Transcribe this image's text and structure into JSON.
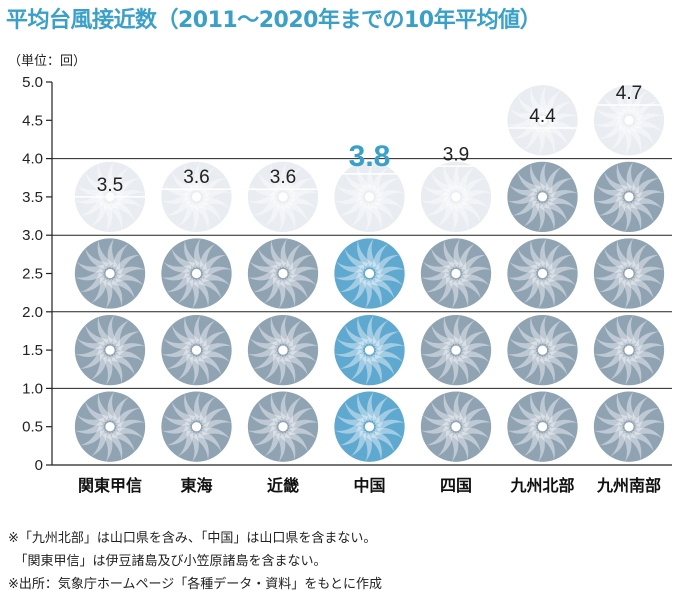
{
  "title": "平均台風接近数（2011～2020年までの10年平均値）",
  "unit_label": "（単位：回）",
  "notes": [
    "※「九州北部」は山口県を含み、「中国」は山口県を含まない。",
    "　「関東甲信」は伊豆諸島及び小笠原諸島を含まない。",
    "※出所：気象庁ホームページ「各種データ・資料」をもとに作成"
  ],
  "colors": {
    "accent": "#3aa0c8",
    "highlight_typhoon": "#5fa8cf",
    "typhoon": "#8fa3b3",
    "faded_typhoon": "#e9edf1",
    "gridline": "#222222"
  },
  "chart_data": {
    "type": "bar",
    "style": "pictogram (typhoon icons, one icon = 1.0 回)",
    "categories": [
      "関東甲信",
      "東海",
      "近畿",
      "中国",
      "四国",
      "九州北部",
      "九州南部"
    ],
    "values": [
      3.5,
      3.6,
      3.6,
      3.8,
      3.9,
      4.4,
      4.7
    ],
    "value_labels": [
      "3.5",
      "3.6",
      "3.6",
      "3.8",
      "3.9",
      "4.4",
      "4.7"
    ],
    "highlight_category": "中国",
    "ylim": [
      0,
      5.0
    ],
    "yticks": [
      "0",
      "0.5",
      "1.0",
      "1.5",
      "2.0",
      "2.5",
      "3.0",
      "3.5",
      "4.0",
      "4.5",
      "5.0"
    ],
    "grid": "horizontal lines at each whole number",
    "icon_unit": 1.0
  }
}
